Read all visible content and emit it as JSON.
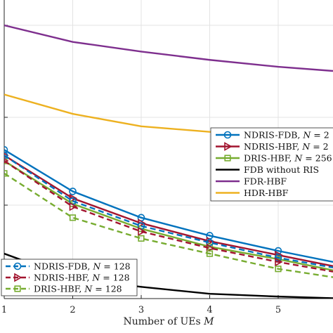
{
  "chart_data": {
    "type": "line",
    "xlabel": "Number of UEs M",
    "xlim": [
      1,
      5.8
    ],
    "ylim": [
      0,
      1
    ],
    "x_ticks": [
      "1",
      "2",
      "3",
      "4",
      "5"
    ],
    "grid": true,
    "series": [
      {
        "name": "NDRIS-FDB, N = 2",
        "color": "#0072BD",
        "dash": "solid",
        "marker": "circle",
        "x": [
          1,
          2,
          3,
          4,
          5,
          5.8
        ],
        "y": [
          0.55,
          0.4,
          0.305,
          0.24,
          0.185,
          0.145
        ]
      },
      {
        "name": "NDRIS-HBF, N = 2",
        "color": "#A2142F",
        "dash": "solid",
        "marker": "triangle-right",
        "x": [
          1,
          2,
          3,
          4,
          5,
          5.8
        ],
        "y": [
          0.53,
          0.375,
          0.285,
          0.22,
          0.17,
          0.13
        ]
      },
      {
        "name": "DRIS-HBF, N = 256",
        "color": "#77AC30",
        "dash": "solid",
        "marker": "square",
        "x": [
          1,
          2,
          3,
          4,
          5,
          5.8
        ],
        "y": [
          0.51,
          0.355,
          0.265,
          0.2,
          0.155,
          0.115
        ]
      },
      {
        "name": "FDB without RIS",
        "color": "#000000",
        "dash": "solid",
        "marker": "none",
        "x": [
          1,
          2,
          3,
          4,
          5,
          5.8
        ],
        "y": [
          0.175,
          0.085,
          0.055,
          0.03,
          0.02,
          0.014
        ]
      },
      {
        "name": "FDR-HBF",
        "color": "#7E2F8E",
        "dash": "solid",
        "marker": "none",
        "x": [
          1,
          2,
          3,
          4,
          5,
          5.8
        ],
        "y": [
          1.0,
          0.94,
          0.905,
          0.875,
          0.85,
          0.835
        ]
      },
      {
        "name": "HDR-HBF",
        "color": "#EDB120",
        "dash": "solid",
        "marker": "none",
        "x": [
          1,
          2,
          3,
          4,
          5,
          5.8
        ],
        "y": [
          0.75,
          0.68,
          0.635,
          0.615,
          0.6,
          0.59
        ]
      },
      {
        "name": "NDRIS-FDB, N = 128",
        "color": "#0072BD",
        "dash": "dashed",
        "marker": "circle",
        "x": [
          1,
          2,
          3,
          4,
          5,
          5.8
        ],
        "y": [
          0.53,
          0.365,
          0.275,
          0.215,
          0.16,
          0.125
        ]
      },
      {
        "name": "NDRIS-HBF, N = 128",
        "color": "#A2142F",
        "dash": "dashed",
        "marker": "triangle-right",
        "x": [
          1,
          2,
          3,
          4,
          5,
          5.8
        ],
        "y": [
          0.51,
          0.345,
          0.255,
          0.195,
          0.145,
          0.11
        ]
      },
      {
        "name": "DRIS-HBF, N = 128",
        "color": "#77AC30",
        "dash": "dashed",
        "marker": "square",
        "x": [
          1,
          2,
          3,
          4,
          5,
          5.8
        ],
        "y": [
          0.465,
          0.305,
          0.23,
          0.175,
          0.12,
          0.09
        ]
      }
    ],
    "legends": [
      {
        "placement": "right-middle",
        "entries": [
          "NDRIS-FDB, N = 2",
          "NDRIS-HBF, N = 2",
          "DRIS-HBF, N = 256",
          "FDB without RIS",
          "FDR-HBF",
          "HDR-HBF"
        ]
      },
      {
        "placement": "bottom-left",
        "entries": [
          "NDRIS-FDB, N = 128",
          "NDRIS-HBF, N = 128",
          "DRIS-HBF, N = 128"
        ]
      }
    ]
  }
}
